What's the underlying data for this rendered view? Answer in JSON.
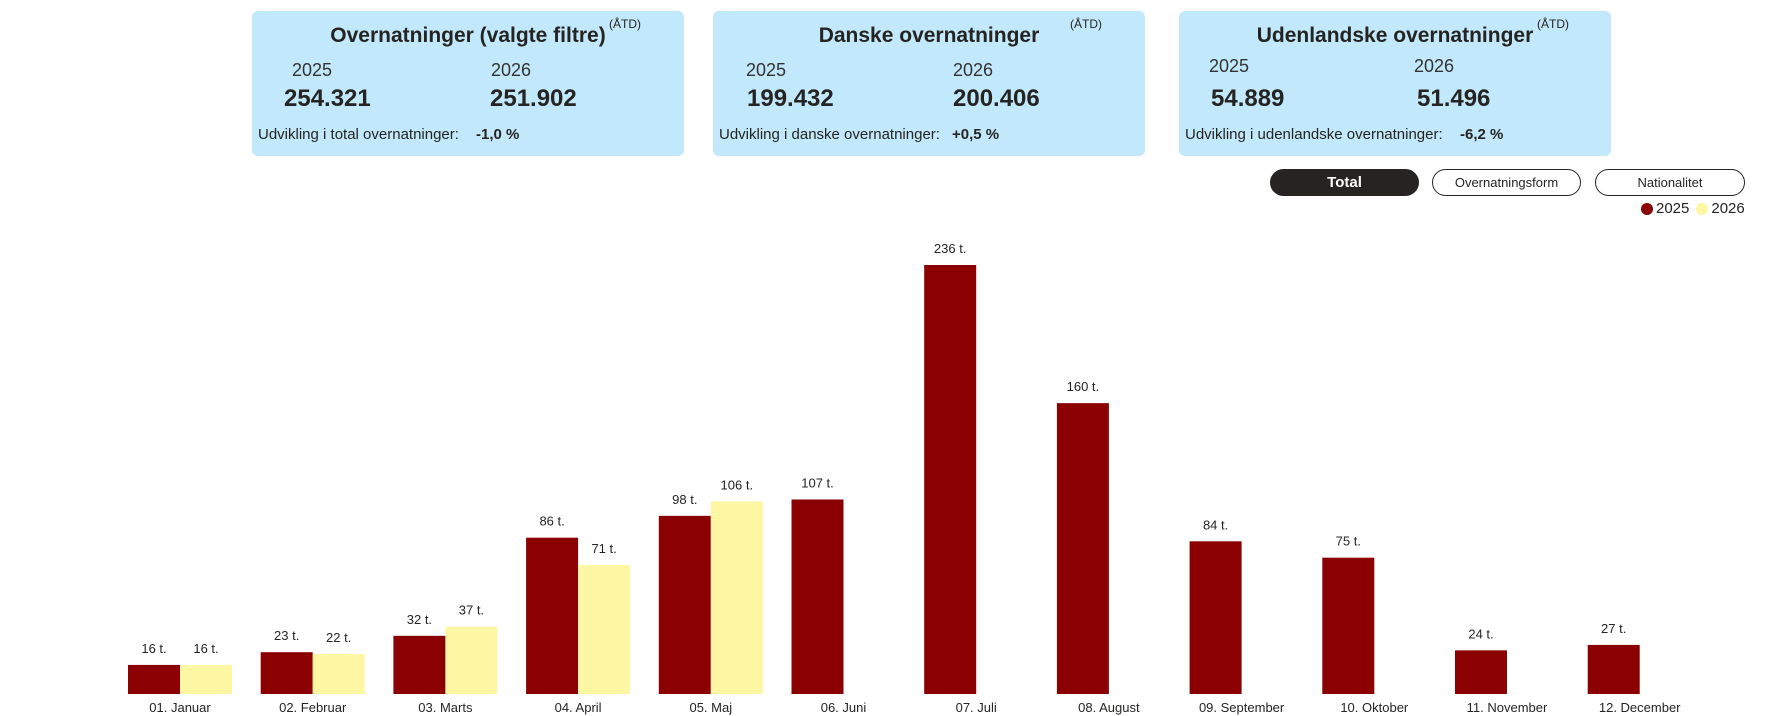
{
  "cards": [
    {
      "title": "Overnatninger (valgte filtre)",
      "atd": "(ÅTD)",
      "year_a": "2025",
      "value_a": "254.321",
      "year_b": "2026",
      "value_b": "251.902",
      "dev_label": "Udvikling i total overnatninger:",
      "dev_value": "-1,0 %"
    },
    {
      "title": "Danske overnatninger",
      "atd": "(ÅTD)",
      "year_a": "2025",
      "value_a": "199.432",
      "year_b": "2026",
      "value_b": "200.406",
      "dev_label": "Udvikling i danske overnatninger:",
      "dev_value": "+0,5 %"
    },
    {
      "title": "Udenlandske overnatninger",
      "atd": "(ÅTD)",
      "year_a": "2025",
      "value_a": "54.889",
      "year_b": "2026",
      "value_b": "51.496",
      "dev_label": "Udvikling i udenlandske overnatninger:",
      "dev_value": "-6,2 %"
    }
  ],
  "toggles": {
    "total": "Total",
    "form": "Overnatningsform",
    "nationality": "Nationalitet"
  },
  "colors": {
    "series_2025": "#8b0000",
    "series_2026": "#fdf6a3",
    "card_bg": "#c2e8fb"
  },
  "chart_data": {
    "type": "bar",
    "categories": [
      "01. Januar",
      "02. Februar",
      "03. Marts",
      "04. April",
      "05. Maj",
      "06. Juni",
      "07. Juli",
      "08. August",
      "09. September",
      "10. Oktober",
      "11. November",
      "12. December"
    ],
    "series": [
      {
        "name": "2025",
        "color": "#8b0000",
        "values": [
          16,
          23,
          32,
          86,
          98,
          107,
          236,
          160,
          84,
          75,
          24,
          27
        ],
        "labels": [
          "16 t.",
          "23 t.",
          "32 t.",
          "86 t.",
          "98 t.",
          "107 t.",
          "236 t.",
          "160 t.",
          "84 t.",
          "75 t.",
          "24 t.",
          "27 t."
        ]
      },
      {
        "name": "2026",
        "color": "#fdf6a3",
        "values": [
          16,
          22,
          37,
          71,
          106,
          null,
          null,
          null,
          null,
          null,
          null,
          null
        ],
        "labels": [
          "16 t.",
          "22 t.",
          "37 t.",
          "71 t.",
          "106 t.",
          null,
          null,
          null,
          null,
          null,
          null,
          null
        ]
      }
    ],
    "title": "",
    "xlabel": "",
    "ylabel": "",
    "ylim": [
      0,
      236
    ],
    "grid": false,
    "legend": "top-right"
  }
}
